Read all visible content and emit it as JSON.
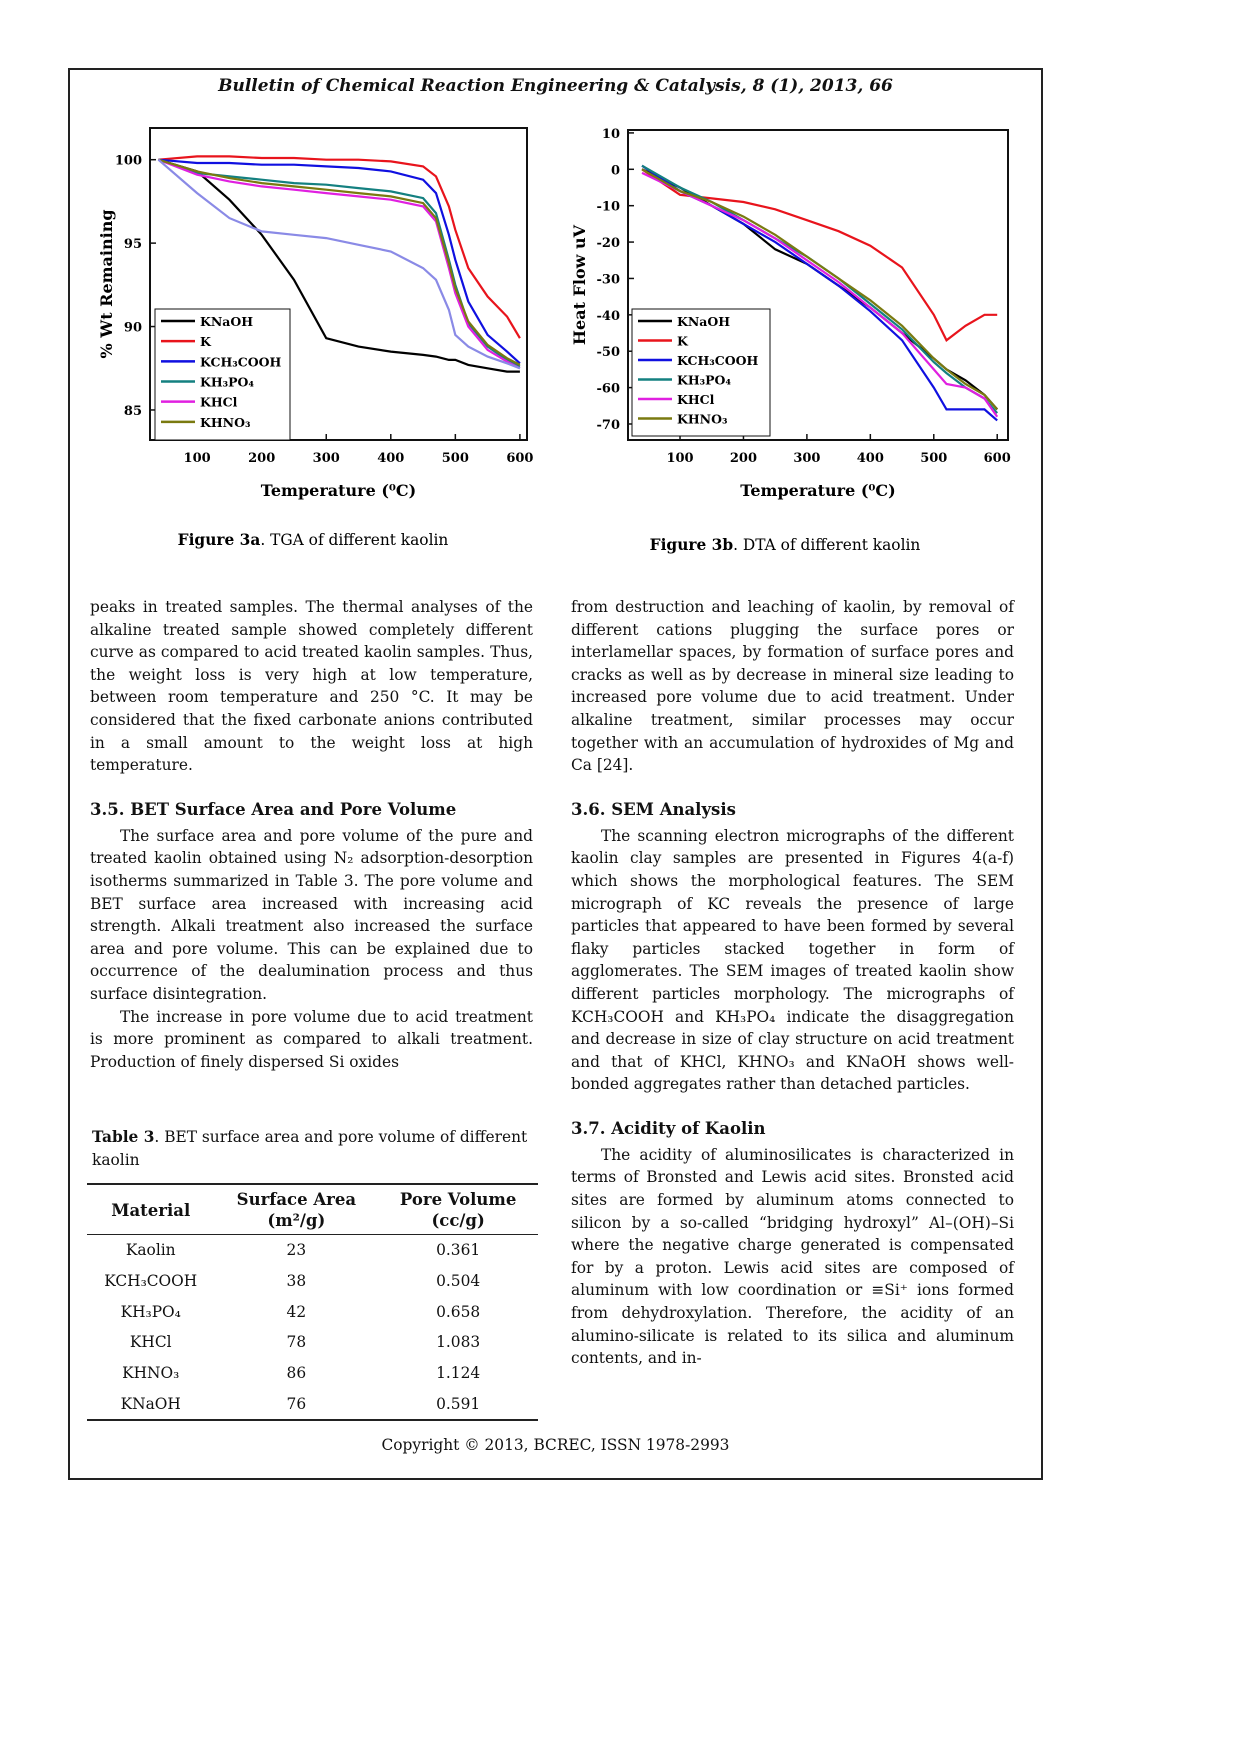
{
  "header": {
    "journal": "Bulletin of Chemical Reaction Engineering & Catalysis, 8 (1), 2013, 66"
  },
  "chart_data": [
    {
      "type": "line",
      "xlabel": "Temperature (⁰C)",
      "ylabel": "% Wt Remaining",
      "caption": {
        "label": "Figure 3a",
        "text": ". TGA of different kaolin"
      },
      "xlim": [
        27,
        611
      ],
      "ylim": [
        83.2,
        101.9
      ],
      "xticks": [
        100,
        200,
        300,
        400,
        500,
        600
      ],
      "yticks": [
        85,
        90,
        95,
        100
      ],
      "legend": "lower left",
      "x": [
        40,
        100,
        150,
        200,
        250,
        300,
        350,
        400,
        450,
        470,
        490,
        500,
        520,
        550,
        580,
        600
      ],
      "series": [
        {
          "name": "KNaOH",
          "color": "#000000",
          "values": [
            100,
            99.3,
            97.6,
            95.5,
            92.8,
            89.3,
            88.8,
            88.5,
            88.3,
            88.2,
            88,
            88,
            87.7,
            87.5,
            87.3,
            87.3
          ]
        },
        {
          "name": "K",
          "color": "#e8141c",
          "values": [
            100,
            100.2,
            100.2,
            100.1,
            100.1,
            100,
            100,
            99.9,
            99.6,
            99,
            97.2,
            95.8,
            93.5,
            91.8,
            90.6,
            89.3
          ]
        },
        {
          "name": "KCH₃COOH",
          "color": "#1010e0",
          "values": [
            100,
            99.8,
            99.8,
            99.7,
            99.7,
            99.6,
            99.5,
            99.3,
            98.8,
            98,
            95.5,
            94,
            91.5,
            89.5,
            88.5,
            87.8
          ]
        },
        {
          "name": "KH₃PO₄",
          "color": "#148080",
          "values": [
            100,
            99.2,
            99,
            98.8,
            98.6,
            98.5,
            98.3,
            98.1,
            97.7,
            96.8,
            94,
            92.5,
            90.2,
            88.8,
            88,
            87.6
          ]
        },
        {
          "name": "KHCl",
          "color": "#e020e0",
          "values": [
            100,
            99.1,
            98.7,
            98.4,
            98.2,
            98,
            97.8,
            97.6,
            97.2,
            96.3,
            93.5,
            92,
            90,
            88.6,
            87.9,
            87.5
          ]
        },
        {
          "name": "KHNO₃",
          "color": "#7a7a10",
          "values": [
            100,
            99.3,
            98.9,
            98.6,
            98.4,
            98.2,
            98,
            97.8,
            97.4,
            96.5,
            93.8,
            92.3,
            90.3,
            88.9,
            88.1,
            87.7
          ]
        },
        {
          "color": "#8a8ae6",
          "values": [
            100,
            98,
            96.5,
            95.7,
            95.5,
            95.3,
            94.9,
            94.5,
            93.5,
            92.8,
            91,
            89.5,
            88.8,
            88.2,
            87.8,
            87.5
          ]
        }
      ]
    },
    {
      "type": "line",
      "xlabel": "Temperature (⁰C)",
      "ylabel": "Heat Flow uV",
      "caption": {
        "label": "Figure 3b",
        "text": ". DTA of different kaolin"
      },
      "xlim": [
        18,
        617
      ],
      "ylim": [
        -74.4,
        10.8
      ],
      "xticks": [
        100,
        200,
        300,
        400,
        500,
        600
      ],
      "yticks": [
        10,
        0,
        -10,
        -20,
        -30,
        -40,
        -50,
        -60,
        -70
      ],
      "legend": "lower left",
      "x": [
        40,
        100,
        150,
        200,
        250,
        300,
        350,
        400,
        450,
        500,
        520,
        550,
        580,
        600
      ],
      "series": [
        {
          "name": "KNaOH",
          "color": "#000000",
          "values": [
            0,
            -5,
            -10,
            -15,
            -22,
            -26,
            -32,
            -38,
            -45,
            -52,
            -55,
            -58,
            -62,
            -66
          ]
        },
        {
          "name": "K",
          "color": "#e8141c",
          "values": [
            0,
            -7,
            -8,
            -9,
            -11,
            -14,
            -17,
            -21,
            -27,
            -40,
            -47,
            -43,
            -40,
            -40
          ]
        },
        {
          "name": "KCH₃COOH",
          "color": "#1010e0",
          "values": [
            1,
            -6,
            -10,
            -15,
            -20,
            -26,
            -32,
            -39,
            -47,
            -60,
            -66,
            -66,
            -66,
            -69
          ]
        },
        {
          "name": "KH₃PO₄",
          "color": "#148080",
          "values": [
            1,
            -5,
            -9,
            -14,
            -19,
            -24,
            -30,
            -37,
            -44,
            -53,
            -56,
            -60,
            -63,
            -67
          ]
        },
        {
          "name": "KHCl",
          "color": "#e020e0",
          "values": [
            -1,
            -6,
            -10,
            -14,
            -19,
            -25,
            -31,
            -38,
            -45,
            -55,
            -59,
            -60,
            -63,
            -68
          ]
        },
        {
          "name": "KHNO₃",
          "color": "#7a7a10",
          "values": [
            0,
            -6,
            -9,
            -13,
            -18,
            -24,
            -30,
            -36,
            -43,
            -52,
            -55,
            -59,
            -62,
            -66
          ]
        }
      ]
    }
  ],
  "body": {
    "left_intro": "peaks in treated samples. The thermal analyses of the alkaline treated sample showed completely different curve as compared to acid treated kaolin samples. Thus, the weight loss is very high at low temperature, between room temperature and 250 °C. It may be considered that the fixed carbonate anions contributed in a small amount to the weight loss at high temperature.",
    "right_intro": "from destruction and leaching of kaolin, by removal of different cations plugging the surface pores or interlamellar spaces, by formation of surface pores and cracks as well as by decrease in mineral size leading to increased pore volume due to acid treatment. Under alkaline treatment, similar processes may occur together with an accumulation of hydroxides of Mg and Ca [24].",
    "sections": [
      {
        "heading": "3.5. BET Surface Area and Pore Volume",
        "paragraphs": [
          "The surface area and pore volume of the pure and treated kaolin obtained using N₂ adsorption-desorption isotherms summarized in Table 3. The pore volume and BET surface area increased with increasing acid strength. Alkali treatment also increased the surface area and pore volume. This can be explained due to occurrence of the dealumination process and thus surface disintegration.",
          "The increase in pore volume due to acid treatment is more prominent as compared to alkali treatment. Production of finely dispersed Si oxides"
        ]
      },
      {
        "heading": "3.6. SEM Analysis",
        "paragraphs": [
          "The scanning electron micrographs of the different kaolin clay samples are presented in Figures 4(a-f) which shows the morphological features. The SEM micrograph of KC reveals the presence of large particles that appeared to have been formed by several flaky particles stacked together in form of agglomerates. The SEM images of treated kaolin show different particles morphology. The micrographs of KCH₃COOH and KH₃PO₄ indicate the disaggregation and decrease in size of clay structure on acid treatment and that of KHCl, KHNO₃ and KNaOH shows well-bonded aggregates rather than detached particles."
        ]
      },
      {
        "heading": "3.7. Acidity of Kaolin",
        "paragraphs": [
          "The acidity of aluminosilicates is characterized in terms of Bronsted and Lewis acid sites. Bronsted acid sites are formed by aluminum atoms connected to silicon by a so-called “bridging hydroxyl” Al–(OH)–Si where the negative charge generated is compensated for by a proton. Lewis acid sites are composed of aluminum with low coordination or ≡Si⁺ ions formed from dehydroxylation. Therefore, the acidity of an alumino-silicate is related to its silica and aluminum contents, and in-"
        ]
      }
    ]
  },
  "table": {
    "caption": {
      "label": "Table 3",
      "text": ". BET surface area and pore volume of different kaolin"
    },
    "header": [
      "Material",
      "Surface Area\n(m²/g)",
      "Pore Volume\n(cc/g)"
    ],
    "rows": [
      [
        "Kaolin",
        23,
        0.361
      ],
      [
        "KCH₃COOH",
        38,
        0.504
      ],
      [
        "KH₃PO₄",
        42,
        0.658
      ],
      [
        "KHCl",
        78,
        1.083
      ],
      [
        "KHNO₃",
        86,
        1.124
      ],
      [
        "KNaOH",
        76,
        0.591
      ]
    ]
  },
  "footer": {
    "copyright": "Copyright © 2013, BCREC, ISSN 1978-2993"
  }
}
